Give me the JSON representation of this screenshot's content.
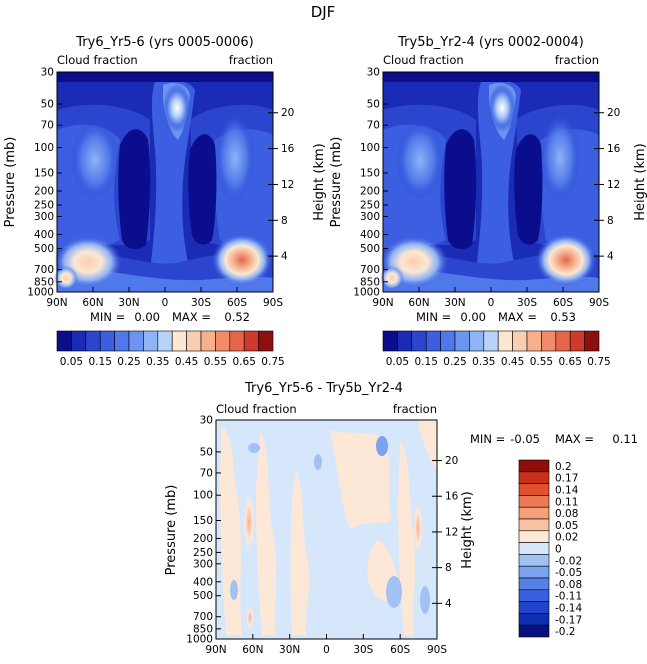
{
  "page_title": "DJF",
  "colors": {
    "cloud_scale": [
      "#0b0e8c",
      "#1a2bb5",
      "#2b45cf",
      "#3c5ee0",
      "#4f78ea",
      "#6b95f0",
      "#8fb3f5",
      "#b8d2f8",
      "#fbe7d2",
      "#f9cfb1",
      "#f6b08e",
      "#f18c6a",
      "#e5644a",
      "#cf3a2c",
      "#8e0f0f"
    ],
    "diff_scale": [
      "#07127e",
      "#0f2db0",
      "#2244cc",
      "#3761de",
      "#5681e6",
      "#7ba2ee",
      "#a3c2f4",
      "#d6e6fb",
      "#fde8d7",
      "#f9c2a2",
      "#f59f7b",
      "#ec7a55",
      "#e0512f",
      "#c8301a",
      "#8f0d0a"
    ]
  },
  "chart_data": [
    {
      "type": "heatmap",
      "title": "Try6_Yr5-6 (yrs 0005-0006)",
      "subtitle_left": "Cloud fraction",
      "subtitle_right": "fraction",
      "xlabel": "",
      "ylabel": "Pressure (mb)",
      "ylabel_right": "Height (km)",
      "x_tick_labels": [
        "90N",
        "60N",
        "30N",
        "0",
        "30S",
        "60S",
        "90S"
      ],
      "y_tick_labels": [
        "30",
        "50",
        "70",
        "100",
        "150",
        "200",
        "250",
        "300",
        "400",
        "500",
        "700",
        "850",
        "1000"
      ],
      "y_ticks_pressure": [
        30,
        50,
        70,
        100,
        150,
        200,
        250,
        300,
        400,
        500,
        700,
        850,
        1000
      ],
      "right_tick_labels": [
        "20",
        "16",
        "12",
        "8",
        "4"
      ],
      "right_ticks_km": [
        20,
        16,
        12,
        8,
        4
      ],
      "min_label": "MIN =",
      "min_value": "0.00",
      "max_label": "MAX =",
      "max_value": "0.52",
      "colorbar_labels": [
        "0.05",
        "0.15",
        "0.25",
        "0.35",
        "0.45",
        "0.55",
        "0.65",
        "0.75"
      ]
    },
    {
      "type": "heatmap",
      "title": "Try5b_Yr2-4 (yrs 0002-0004)",
      "subtitle_left": "Cloud fraction",
      "subtitle_right": "fraction",
      "xlabel": "",
      "ylabel": "Pressure (mb)",
      "ylabel_right": "Height (km)",
      "x_tick_labels": [
        "90N",
        "60N",
        "30N",
        "0",
        "30S",
        "60S",
        "90S"
      ],
      "y_tick_labels": [
        "30",
        "50",
        "70",
        "100",
        "150",
        "200",
        "250",
        "300",
        "400",
        "500",
        "700",
        "850",
        "1000"
      ],
      "y_ticks_pressure": [
        30,
        50,
        70,
        100,
        150,
        200,
        250,
        300,
        400,
        500,
        700,
        850,
        1000
      ],
      "right_tick_labels": [
        "20",
        "16",
        "12",
        "8",
        "4"
      ],
      "right_ticks_km": [
        20,
        16,
        12,
        8,
        4
      ],
      "min_label": "MIN =",
      "min_value": "0.00",
      "max_label": "MAX =",
      "max_value": "0.53",
      "colorbar_labels": [
        "0.05",
        "0.15",
        "0.25",
        "0.35",
        "0.45",
        "0.55",
        "0.65",
        "0.75"
      ]
    },
    {
      "type": "heatmap",
      "title": "Try6_Yr5-6 - Try5b_Yr2-4",
      "subtitle_left": "Cloud fraction",
      "subtitle_right": "fraction",
      "xlabel": "",
      "ylabel": "Pressure (mb)",
      "ylabel_right": "Height (km)",
      "x_tick_labels": [
        "90N",
        "60N",
        "30N",
        "0",
        "30S",
        "60S",
        "90S"
      ],
      "y_tick_labels": [
        "30",
        "50",
        "70",
        "100",
        "150",
        "200",
        "250",
        "300",
        "400",
        "500",
        "700",
        "850",
        "1000"
      ],
      "y_ticks_pressure": [
        30,
        50,
        70,
        100,
        150,
        200,
        250,
        300,
        400,
        500,
        700,
        850,
        1000
      ],
      "right_tick_labels": [
        "20",
        "16",
        "12",
        "8",
        "4"
      ],
      "right_ticks_km": [
        20,
        16,
        12,
        8,
        4
      ],
      "min_label": "MIN =",
      "min_value": "-0.05",
      "max_label": "MAX =",
      "max_value": "0.11",
      "colorbar_labels": [
        "0.2",
        "0.17",
        "0.14",
        "0.11",
        "0.08",
        "0.05",
        "0.02",
        "0",
        "-0.02",
        "-0.05",
        "-0.08",
        "-0.11",
        "-0.14",
        "-0.17",
        "-0.2"
      ]
    }
  ]
}
